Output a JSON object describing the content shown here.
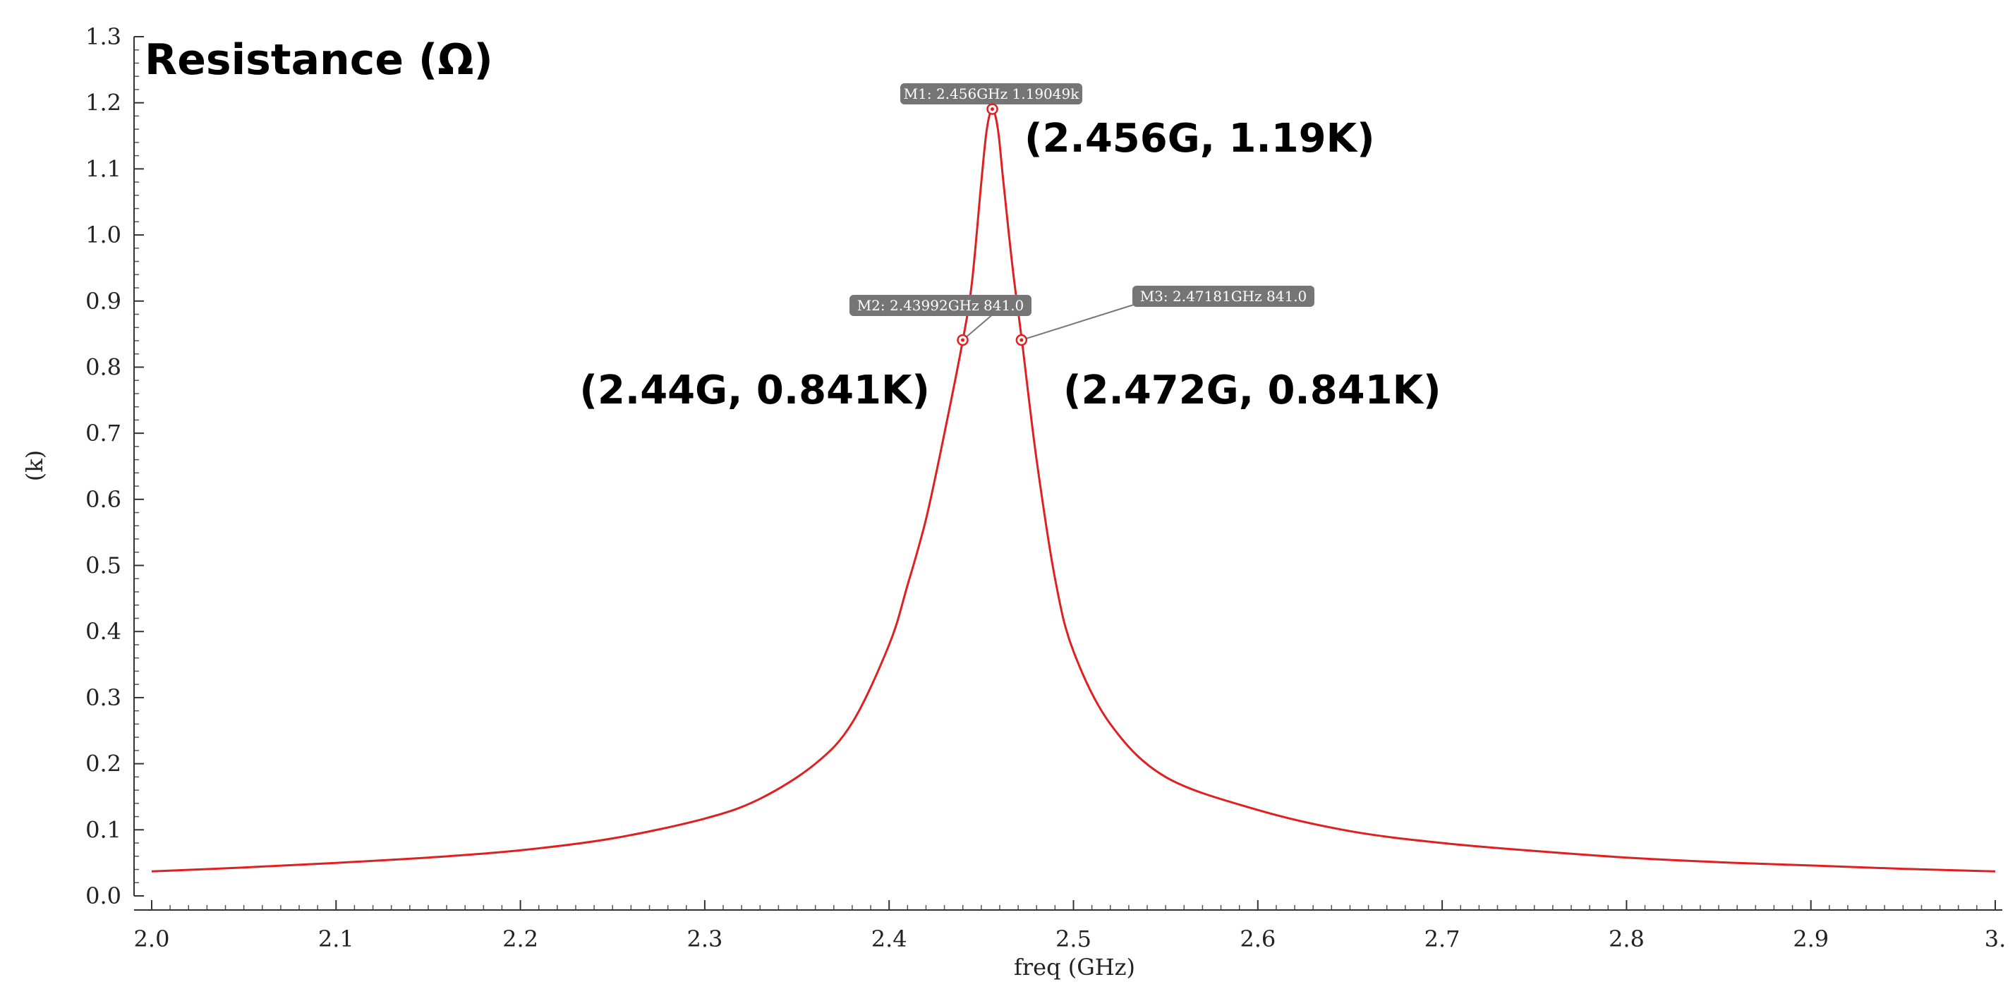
{
  "chart_data": {
    "type": "line",
    "title": "Resistance (Ω)",
    "xlabel": "freq (GHz)",
    "ylabel": "(k)",
    "xlim": [
      2.0,
      3.0
    ],
    "ylim": [
      0.0,
      1.3
    ],
    "x_ticks": [
      "2.0",
      "2.1",
      "2.2",
      "2.3",
      "2.4",
      "2.5",
      "2.6",
      "2.7",
      "2.8",
      "2.9",
      "3."
    ],
    "y_ticks": [
      "0.0",
      "0.1",
      "0.2",
      "0.3",
      "0.4",
      "0.5",
      "0.6",
      "0.7",
      "0.8",
      "0.9",
      "1.0",
      "1.1",
      "1.2",
      "1.3"
    ],
    "grid": false,
    "series": [
      {
        "color": "#e02020",
        "x": [
          2.0,
          2.05,
          2.1,
          2.15,
          2.2,
          2.25,
          2.3,
          2.33,
          2.36,
          2.38,
          2.4,
          2.41,
          2.42,
          2.43,
          2.44,
          2.445,
          2.45,
          2.453,
          2.456,
          2.459,
          2.462,
          2.467,
          2.472,
          2.48,
          2.49,
          2.5,
          2.52,
          2.55,
          2.6,
          2.65,
          2.7,
          2.75,
          2.8,
          2.85,
          2.9,
          2.95,
          3.0
        ],
        "y": [
          0.037,
          0.043,
          0.05,
          0.058,
          0.069,
          0.087,
          0.117,
          0.147,
          0.2,
          0.262,
          0.38,
          0.47,
          0.57,
          0.7,
          0.841,
          0.93,
          1.08,
          1.16,
          1.19,
          1.16,
          1.08,
          0.95,
          0.841,
          0.66,
          0.48,
          0.37,
          0.26,
          0.18,
          0.13,
          0.098,
          0.08,
          0.068,
          0.058,
          0.051,
          0.046,
          0.041,
          0.037
        ]
      }
    ],
    "markers": [
      {
        "x": 2.456,
        "y": 1.19049,
        "tag": "M1: 2.456GHz 1.19049k",
        "callout": "(2.456G, 1.19K)"
      },
      {
        "x": 2.43992,
        "y": 0.841,
        "tag": "M2: 2.43992GHz 841.0",
        "callout": "(2.44G, 0.841K)"
      },
      {
        "x": 2.47181,
        "y": 0.841,
        "tag": "M3: 2.47181GHz 841.0",
        "callout": "(2.472G, 0.841K)"
      }
    ]
  }
}
